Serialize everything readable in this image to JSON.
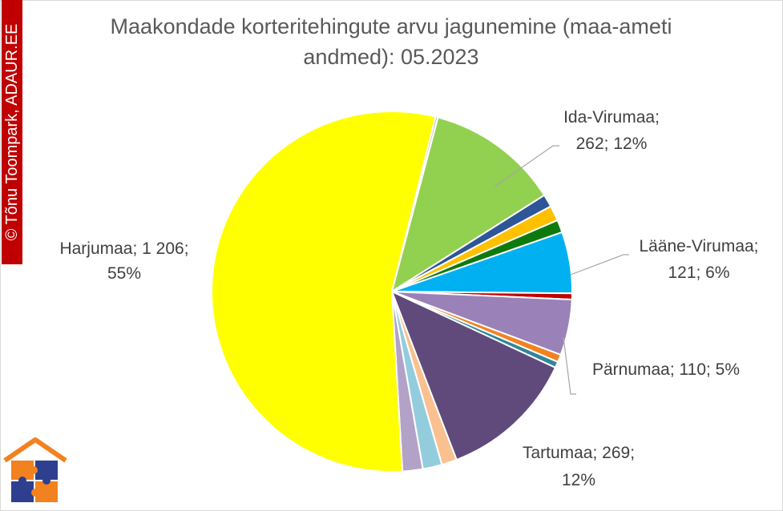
{
  "chart_data": {
    "type": "pie",
    "title_lines": [
      "Maakondade korteritehingute arvu jagunemine (maa-ameti",
      "andmed): 05.2023"
    ],
    "slices": [
      {
        "label": "",
        "value": 5,
        "color": "#bfbfbf"
      },
      {
        "label": "Ida-Virumaa",
        "value": 262,
        "percent": "12%",
        "color": "#92d050"
      },
      {
        "label": "",
        "value": 25,
        "color": "#2e5597"
      },
      {
        "label": "",
        "value": 30,
        "color": "#ffc000"
      },
      {
        "label": "",
        "value": 25,
        "color": "#0e7a0e"
      },
      {
        "label": "Lääne-Virumaa",
        "value": 121,
        "percent": "6%",
        "color": "#00b0f0"
      },
      {
        "label": "",
        "value": 12,
        "color": "#c00000"
      },
      {
        "label": "Pärnumaa",
        "value": 110,
        "percent": "5%",
        "color": "#9a82b8"
      },
      {
        "label": "",
        "value": 15,
        "color": "#f28220"
      },
      {
        "label": "",
        "value": 12,
        "color": "#31859c"
      },
      {
        "label": "Tartumaa",
        "value": 269,
        "percent": "12%",
        "color": "#604a7b"
      },
      {
        "label": "",
        "value": 30,
        "color": "#fac090"
      },
      {
        "label": "",
        "value": 38,
        "color": "#93cddd"
      },
      {
        "label": "",
        "value": 40,
        "color": "#b3a2c7"
      },
      {
        "label": "Harjumaa",
        "value": 1206,
        "percent": "55%",
        "color": "#ffff00"
      }
    ],
    "data_labels": {
      "harjumaa": [
        "Harjumaa; 1 206;",
        "55%"
      ],
      "ida_virumaa": [
        "Ida-Virumaa;",
        "262; 12%"
      ],
      "laane_virumaa": [
        "Lääne-Virumaa;",
        "121; 6%"
      ],
      "parnumaa": [
        "Pärnumaa; 110; 5%"
      ],
      "tartumaa": [
        "Tartumaa; 269;",
        "12%"
      ]
    },
    "legend": "none"
  },
  "watermark": "© Tõnu Toompark, ADAUR.EE",
  "colors": {
    "title": "#595959",
    "label": "#404040",
    "leader": "#a6a6a6",
    "watermark_bg": "#c00000"
  },
  "logo_icon": "house-puzzle-logo"
}
